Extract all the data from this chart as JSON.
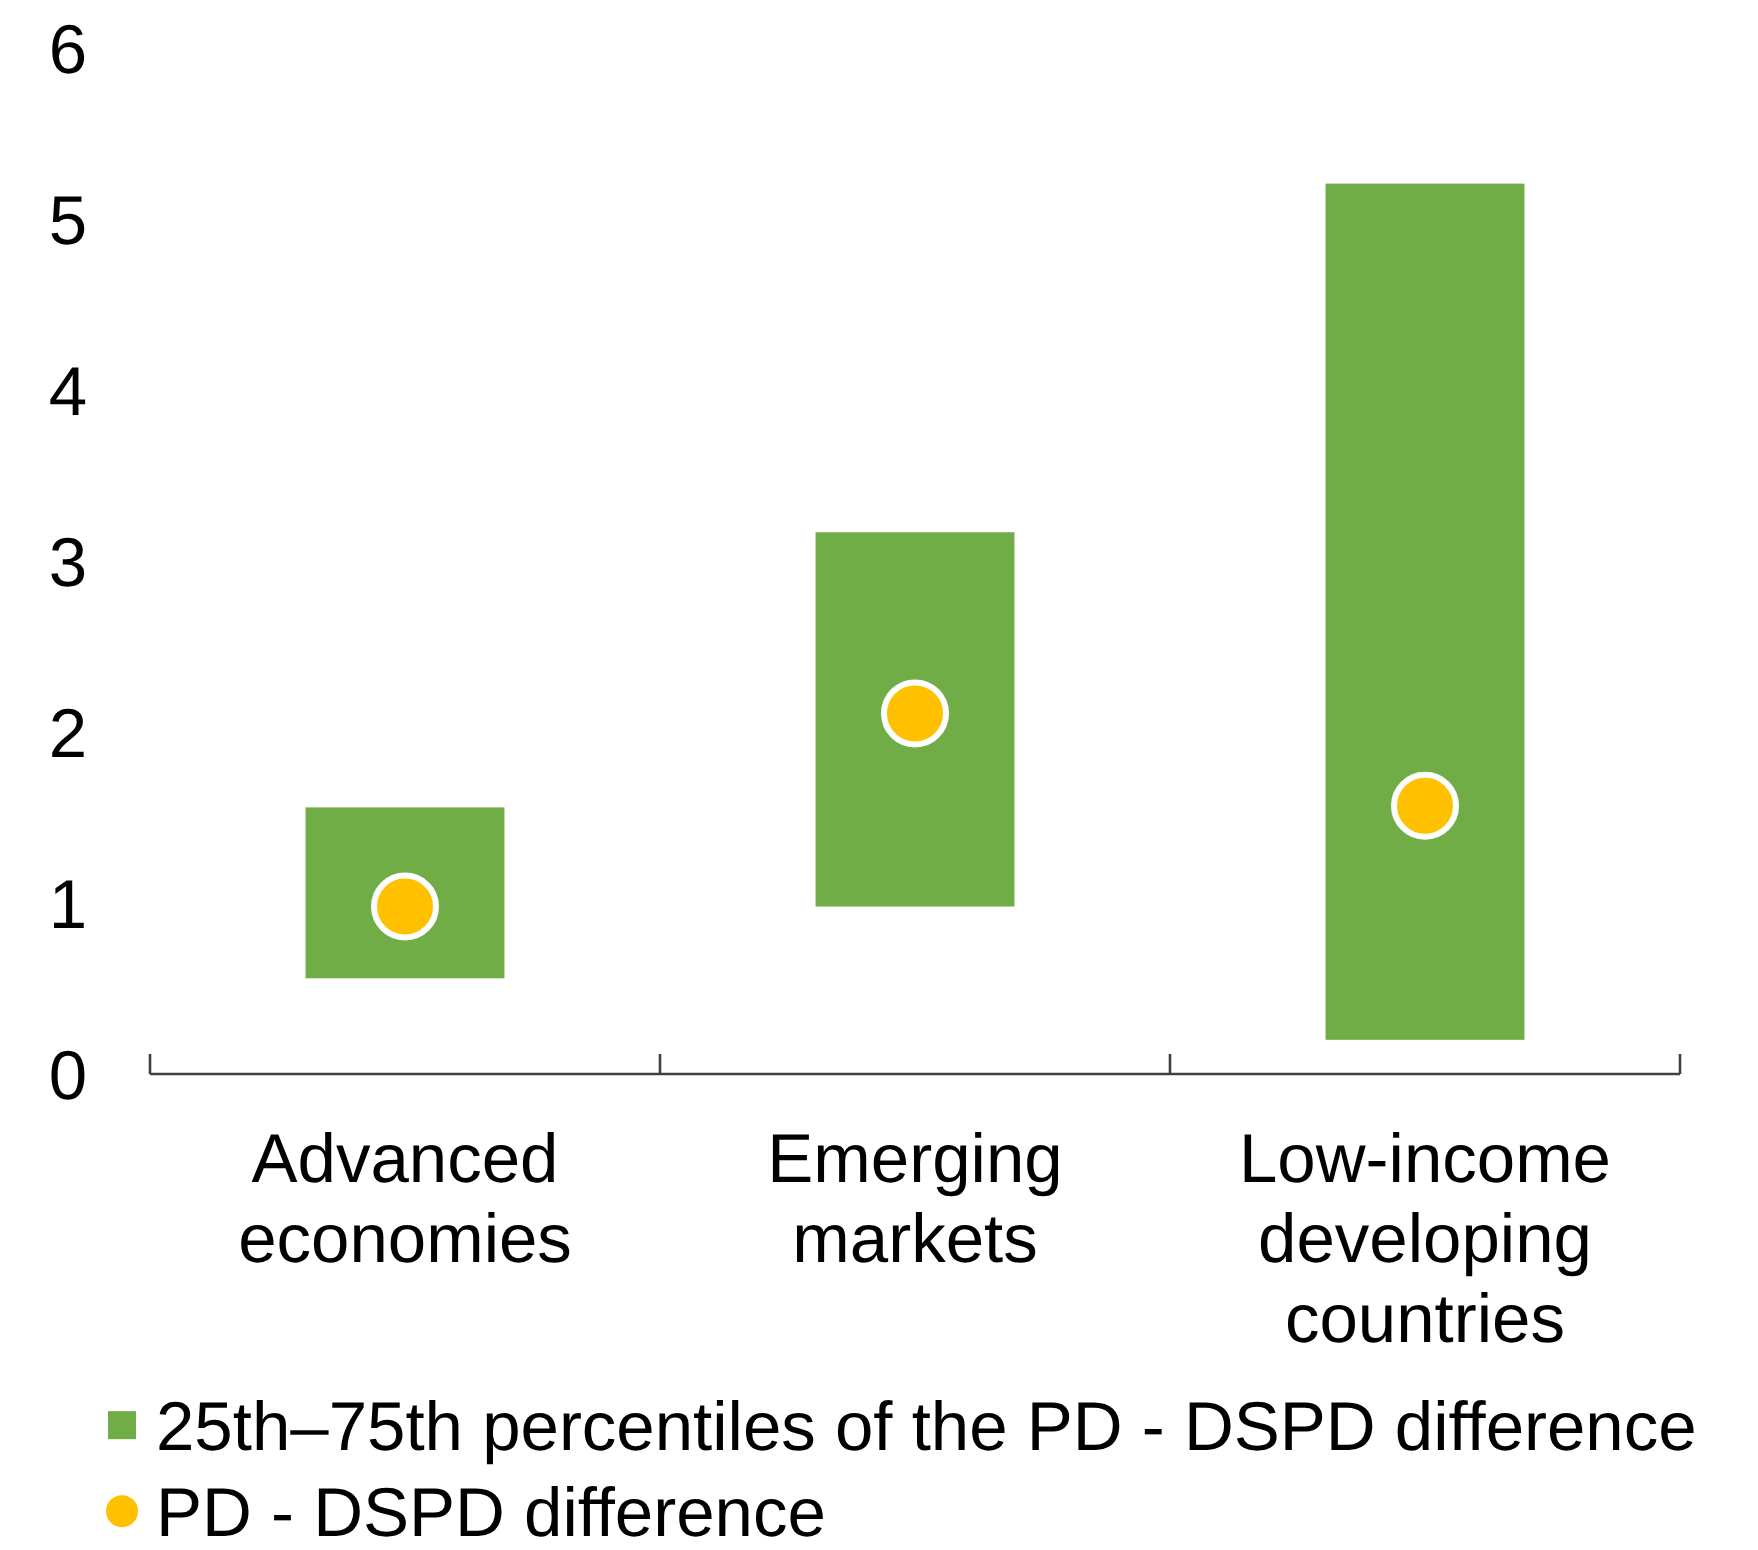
{
  "chart_data": {
    "type": "bar",
    "categories": [
      "Advanced economies",
      "Emerging markets",
      "Low-income developing countries"
    ],
    "series": [
      {
        "name": "25th–75th percentiles of the PD - DSPD difference",
        "color": "#70ad47",
        "base": [
          0.56,
          0.98,
          0.2
        ],
        "values": [
          1.0,
          2.19,
          5.01
        ]
      },
      {
        "name": "PD - DSPD difference",
        "type": "scatter",
        "color": "#ffc000",
        "x": [
          "Advanced economies",
          "Emerging markets",
          "Low-income developing countries"
        ],
        "values": [
          0.98,
          2.11,
          1.57
        ]
      }
    ],
    "ylim": [
      0,
      6
    ],
    "yticks": [
      0,
      1,
      2,
      3,
      4,
      5,
      6
    ],
    "legend": "bottom",
    "marker": "circle"
  }
}
